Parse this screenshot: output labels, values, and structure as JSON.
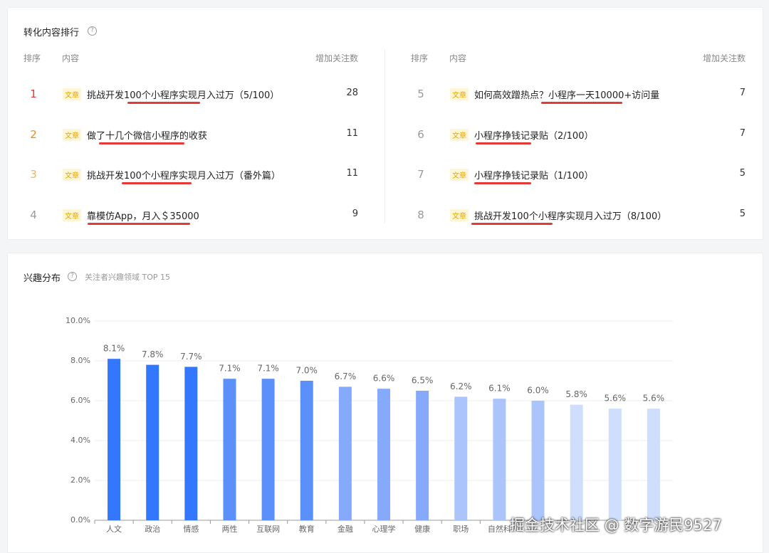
{
  "ranking": {
    "title": "转化内容排行",
    "columns": [
      "排序",
      "内容",
      "增加关注数"
    ],
    "rows": [
      {
        "rank": 1,
        "tag": "文章",
        "title": "挑战开发100个小程序实现月入过万（5/100）",
        "count": 28
      },
      {
        "rank": 2,
        "tag": "文章",
        "title": "做了十几个微信小程序的收获",
        "count": 11
      },
      {
        "rank": 3,
        "tag": "文章",
        "title": "挑战开发100个小程序实现月入过万（番外篇）",
        "count": 11
      },
      {
        "rank": 4,
        "tag": "文章",
        "title": "靠模仿App，月入＄35000",
        "count": 9
      },
      {
        "rank": 5,
        "tag": "文章",
        "title": "如何高效蹭热点？小程序一天10000+访问量",
        "count": 7
      },
      {
        "rank": 6,
        "tag": "文章",
        "title": "小程序挣钱记录贴（2/100）",
        "count": 7
      },
      {
        "rank": 7,
        "tag": "文章",
        "title": "小程序挣钱记录贴（1/100）",
        "count": 5
      },
      {
        "rank": 8,
        "tag": "文章",
        "title": "挑战开发100个小程序实现月入过万（8/100）",
        "count": 5
      }
    ]
  },
  "chart_data": {
    "type": "bar",
    "title": "兴趣分布",
    "subtitle": "关注者兴趣领域 TOP 15",
    "categories": [
      "人文",
      "政治",
      "情感",
      "两性",
      "互联网",
      "教育",
      "金融",
      "心理学",
      "健康",
      "职场",
      "自然科",
      null,
      null,
      null,
      null
    ],
    "values": [
      8.1,
      7.8,
      7.7,
      7.1,
      7.1,
      7.0,
      6.7,
      6.6,
      6.5,
      6.2,
      6.1,
      6.0,
      5.8,
      5.6,
      5.6
    ],
    "value_labels": [
      "8.1%",
      "7.8%",
      "7.7%",
      "7.1%",
      "7.1%",
      "7.0%",
      "6.7%",
      "6.6%",
      "6.5%",
      "6.2%",
      "6.1%",
      "6.0%",
      "5.8%",
      "5.6%",
      "5.6%"
    ],
    "colors": [
      "#3377ff",
      "#3377ff",
      "#3377ff",
      "#5b8ff9",
      "#5b8ff9",
      "#5b8ff9",
      "#85aafb",
      "#85aafb",
      "#85aafb",
      "#abc4fc",
      "#abc4fc",
      "#abc4fc",
      "#cfdefd",
      "#cfdefd",
      "#cfdefd"
    ],
    "ylim": [
      0,
      10
    ],
    "yticks": [
      {
        "value": 0,
        "label": "0.0%"
      },
      {
        "value": 2,
        "label": "2.0%"
      },
      {
        "value": 4,
        "label": "4.0%"
      },
      {
        "value": 6,
        "label": "6.0%"
      },
      {
        "value": 8,
        "label": "8.0%"
      },
      {
        "value": 10,
        "label": "10.0%"
      }
    ],
    "grid": true
  },
  "watermark": "掘金技术社区 @ 数字游民9527"
}
